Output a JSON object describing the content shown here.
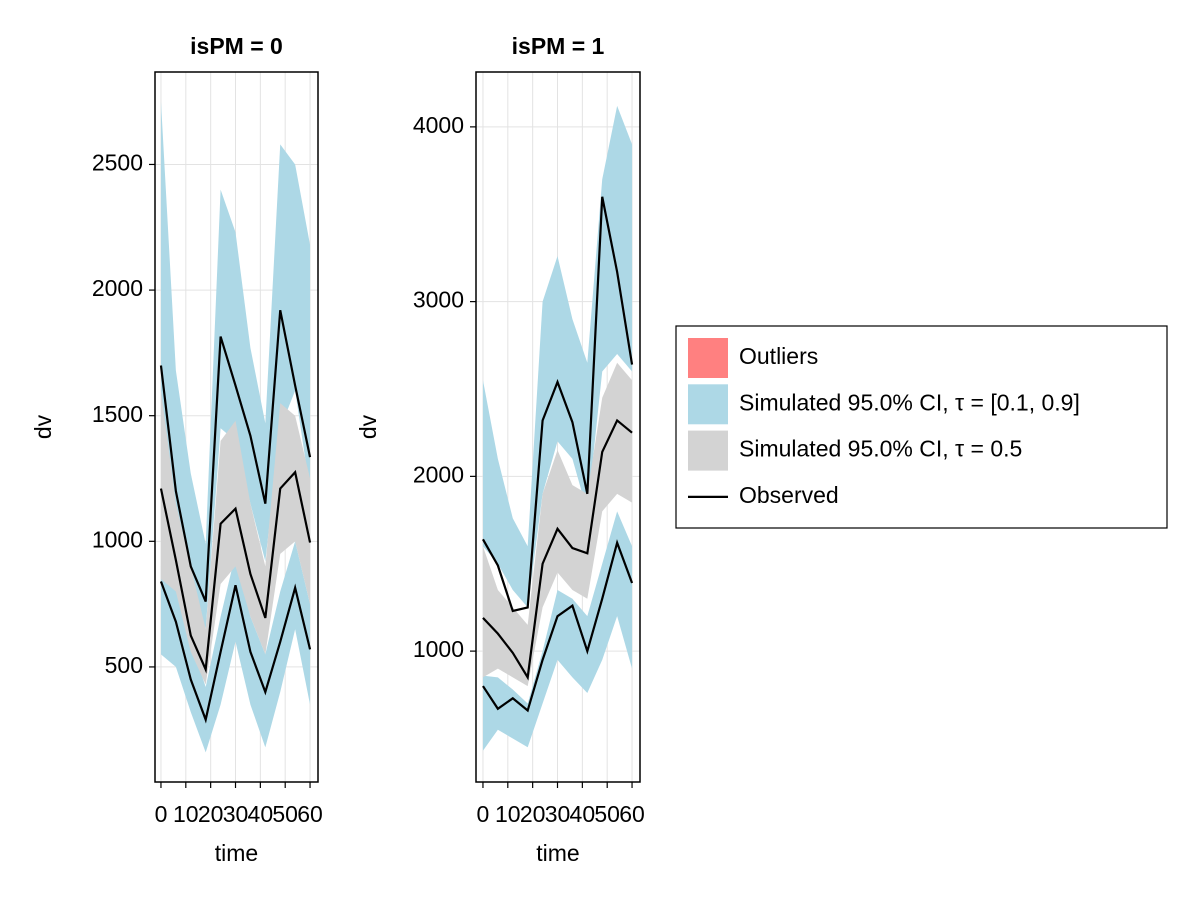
{
  "chart_data": [
    {
      "type": "line",
      "title": "isPM = 0",
      "x_label": "time",
      "y_label": "dv",
      "x": [
        0,
        6,
        12,
        18,
        24,
        30,
        36,
        42,
        48,
        54,
        60
      ],
      "xlim": [
        -2.4,
        63.2
      ],
      "xticks": [
        0,
        10,
        20,
        30,
        40,
        50,
        60
      ],
      "ylim": [
        42,
        2868
      ],
      "yticks": [
        500,
        1000,
        1500,
        2000,
        2500
      ],
      "grid": true,
      "bands": [
        {
          "color": "#add8e6",
          "lower": [
            1600,
            1000,
            800,
            650,
            1450,
            1400,
            1150,
            920,
            1450,
            1600,
            1200
          ],
          "upper": [
            2750,
            1680,
            1270,
            990,
            2400,
            2230,
            1770,
            1470,
            2580,
            2500,
            2180
          ]
        },
        {
          "color": "#add8e6",
          "lower": [
            550,
            500,
            320,
            160,
            350,
            600,
            350,
            180,
            400,
            650,
            350
          ],
          "upper": [
            900,
            820,
            600,
            420,
            700,
            950,
            700,
            550,
            800,
            1000,
            750
          ]
        },
        {
          "color": "#d3d3d3",
          "lower": [
            850,
            800,
            560,
            430,
            830,
            900,
            700,
            550,
            950,
            1000,
            750
          ],
          "upper": [
            1600,
            1150,
            900,
            650,
            1400,
            1480,
            1150,
            900,
            1550,
            1500,
            1250
          ]
        }
      ],
      "lines": [
        {
          "color": "#000000",
          "values": [
            1700,
            1200,
            900,
            760,
            1815,
            1620,
            1420,
            1150,
            1920,
            1620,
            1335
          ]
        },
        {
          "color": "#000000",
          "values": [
            1210,
            925,
            625,
            490,
            1070,
            1130,
            870,
            695,
            1210,
            1275,
            995
          ]
        },
        {
          "color": "#000000",
          "values": [
            840,
            680,
            450,
            290,
            560,
            825,
            560,
            400,
            600,
            815,
            570
          ]
        }
      ]
    },
    {
      "type": "line",
      "title": "isPM = 1",
      "x_label": "time",
      "y_label": "dv",
      "x": [
        0,
        6,
        12,
        18,
        24,
        30,
        36,
        42,
        48,
        54,
        60
      ],
      "xlim": [
        -2.8,
        63.2
      ],
      "xticks": [
        0,
        10,
        20,
        30,
        40,
        50,
        60
      ],
      "ylim": [
        251,
        4314
      ],
      "yticks": [
        1000,
        2000,
        3000,
        4000
      ],
      "grid": true,
      "bands": [
        {
          "color": "#add8e6",
          "lower": [
            1600,
            1500,
            1350,
            1250,
            1900,
            2200,
            2100,
            1800,
            2600,
            2700,
            2600
          ],
          "upper": [
            2550,
            2100,
            1760,
            1600,
            3000,
            3260,
            2900,
            2650,
            3700,
            4120,
            3900
          ]
        },
        {
          "color": "#add8e6",
          "lower": [
            430,
            550,
            500,
            450,
            700,
            950,
            850,
            760,
            950,
            1200,
            900
          ],
          "upper": [
            860,
            850,
            780,
            700,
            1000,
            1350,
            1300,
            1200,
            1500,
            1800,
            1600
          ]
        },
        {
          "color": "#d3d3d3",
          "lower": [
            850,
            900,
            850,
            800,
            1250,
            1450,
            1350,
            1300,
            1800,
            1900,
            1850
          ],
          "upper": [
            1600,
            1350,
            1250,
            1150,
            1900,
            2150,
            1950,
            1900,
            2450,
            2650,
            2550
          ]
        }
      ],
      "lines": [
        {
          "color": "#000000",
          "values": [
            1640,
            1490,
            1230,
            1250,
            2320,
            2540,
            2310,
            1900,
            3600,
            3170,
            2640
          ]
        },
        {
          "color": "#000000",
          "values": [
            1190,
            1100,
            990,
            850,
            1500,
            1700,
            1590,
            1560,
            2140,
            2320,
            2250
          ]
        },
        {
          "color": "#000000",
          "values": [
            800,
            670,
            730,
            660,
            950,
            1200,
            1260,
            1000,
            1300,
            1620,
            1390
          ]
        }
      ]
    }
  ],
  "legend": [
    {
      "label": "Outliers",
      "kind": "patch",
      "color": "#ff8080"
    },
    {
      "label": "Simulated 95.0% CI, τ = [0.1, 0.9]",
      "kind": "patch",
      "color": "#add8e6"
    },
    {
      "label": "Simulated 95.0% CI, τ = 0.5",
      "kind": "patch",
      "color": "#d3d3d3"
    },
    {
      "label": "Observed",
      "kind": "line",
      "color": "#000000"
    }
  ]
}
